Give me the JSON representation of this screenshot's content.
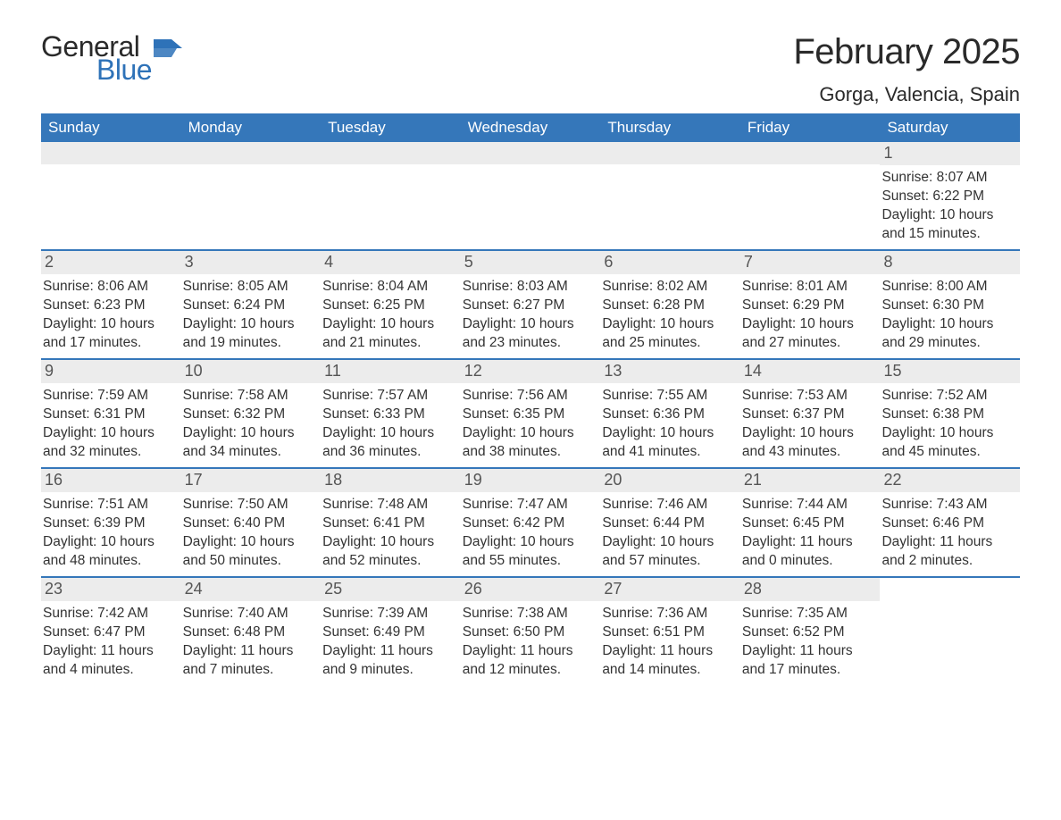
{
  "logo": {
    "word1": "General",
    "word2": "Blue",
    "flag_color": "#2e72b8"
  },
  "title": "February 2025",
  "location": "Gorga, Valencia, Spain",
  "colors": {
    "header_bg": "#3577ba",
    "header_text": "#ffffff",
    "daynum_bg": "#ececec",
    "daynum_text": "#555555",
    "body_text": "#333333",
    "rule": "#3577ba"
  },
  "typography": {
    "title_fontsize": 40,
    "location_fontsize": 22,
    "header_fontsize": 17,
    "daynum_fontsize": 18,
    "detail_fontsize": 15.5
  },
  "day_names": [
    "Sunday",
    "Monday",
    "Tuesday",
    "Wednesday",
    "Thursday",
    "Friday",
    "Saturday"
  ],
  "weeks": [
    [
      null,
      null,
      null,
      null,
      null,
      null,
      {
        "num": "1",
        "sunrise": "Sunrise: 8:07 AM",
        "sunset": "Sunset: 6:22 PM",
        "daylight": "Daylight: 10 hours and 15 minutes."
      }
    ],
    [
      {
        "num": "2",
        "sunrise": "Sunrise: 8:06 AM",
        "sunset": "Sunset: 6:23 PM",
        "daylight": "Daylight: 10 hours and 17 minutes."
      },
      {
        "num": "3",
        "sunrise": "Sunrise: 8:05 AM",
        "sunset": "Sunset: 6:24 PM",
        "daylight": "Daylight: 10 hours and 19 minutes."
      },
      {
        "num": "4",
        "sunrise": "Sunrise: 8:04 AM",
        "sunset": "Sunset: 6:25 PM",
        "daylight": "Daylight: 10 hours and 21 minutes."
      },
      {
        "num": "5",
        "sunrise": "Sunrise: 8:03 AM",
        "sunset": "Sunset: 6:27 PM",
        "daylight": "Daylight: 10 hours and 23 minutes."
      },
      {
        "num": "6",
        "sunrise": "Sunrise: 8:02 AM",
        "sunset": "Sunset: 6:28 PM",
        "daylight": "Daylight: 10 hours and 25 minutes."
      },
      {
        "num": "7",
        "sunrise": "Sunrise: 8:01 AM",
        "sunset": "Sunset: 6:29 PM",
        "daylight": "Daylight: 10 hours and 27 minutes."
      },
      {
        "num": "8",
        "sunrise": "Sunrise: 8:00 AM",
        "sunset": "Sunset: 6:30 PM",
        "daylight": "Daylight: 10 hours and 29 minutes."
      }
    ],
    [
      {
        "num": "9",
        "sunrise": "Sunrise: 7:59 AM",
        "sunset": "Sunset: 6:31 PM",
        "daylight": "Daylight: 10 hours and 32 minutes."
      },
      {
        "num": "10",
        "sunrise": "Sunrise: 7:58 AM",
        "sunset": "Sunset: 6:32 PM",
        "daylight": "Daylight: 10 hours and 34 minutes."
      },
      {
        "num": "11",
        "sunrise": "Sunrise: 7:57 AM",
        "sunset": "Sunset: 6:33 PM",
        "daylight": "Daylight: 10 hours and 36 minutes."
      },
      {
        "num": "12",
        "sunrise": "Sunrise: 7:56 AM",
        "sunset": "Sunset: 6:35 PM",
        "daylight": "Daylight: 10 hours and 38 minutes."
      },
      {
        "num": "13",
        "sunrise": "Sunrise: 7:55 AM",
        "sunset": "Sunset: 6:36 PM",
        "daylight": "Daylight: 10 hours and 41 minutes."
      },
      {
        "num": "14",
        "sunrise": "Sunrise: 7:53 AM",
        "sunset": "Sunset: 6:37 PM",
        "daylight": "Daylight: 10 hours and 43 minutes."
      },
      {
        "num": "15",
        "sunrise": "Sunrise: 7:52 AM",
        "sunset": "Sunset: 6:38 PM",
        "daylight": "Daylight: 10 hours and 45 minutes."
      }
    ],
    [
      {
        "num": "16",
        "sunrise": "Sunrise: 7:51 AM",
        "sunset": "Sunset: 6:39 PM",
        "daylight": "Daylight: 10 hours and 48 minutes."
      },
      {
        "num": "17",
        "sunrise": "Sunrise: 7:50 AM",
        "sunset": "Sunset: 6:40 PM",
        "daylight": "Daylight: 10 hours and 50 minutes."
      },
      {
        "num": "18",
        "sunrise": "Sunrise: 7:48 AM",
        "sunset": "Sunset: 6:41 PM",
        "daylight": "Daylight: 10 hours and 52 minutes."
      },
      {
        "num": "19",
        "sunrise": "Sunrise: 7:47 AM",
        "sunset": "Sunset: 6:42 PM",
        "daylight": "Daylight: 10 hours and 55 minutes."
      },
      {
        "num": "20",
        "sunrise": "Sunrise: 7:46 AM",
        "sunset": "Sunset: 6:44 PM",
        "daylight": "Daylight: 10 hours and 57 minutes."
      },
      {
        "num": "21",
        "sunrise": "Sunrise: 7:44 AM",
        "sunset": "Sunset: 6:45 PM",
        "daylight": "Daylight: 11 hours and 0 minutes."
      },
      {
        "num": "22",
        "sunrise": "Sunrise: 7:43 AM",
        "sunset": "Sunset: 6:46 PM",
        "daylight": "Daylight: 11 hours and 2 minutes."
      }
    ],
    [
      {
        "num": "23",
        "sunrise": "Sunrise: 7:42 AM",
        "sunset": "Sunset: 6:47 PM",
        "daylight": "Daylight: 11 hours and 4 minutes."
      },
      {
        "num": "24",
        "sunrise": "Sunrise: 7:40 AM",
        "sunset": "Sunset: 6:48 PM",
        "daylight": "Daylight: 11 hours and 7 minutes."
      },
      {
        "num": "25",
        "sunrise": "Sunrise: 7:39 AM",
        "sunset": "Sunset: 6:49 PM",
        "daylight": "Daylight: 11 hours and 9 minutes."
      },
      {
        "num": "26",
        "sunrise": "Sunrise: 7:38 AM",
        "sunset": "Sunset: 6:50 PM",
        "daylight": "Daylight: 11 hours and 12 minutes."
      },
      {
        "num": "27",
        "sunrise": "Sunrise: 7:36 AM",
        "sunset": "Sunset: 6:51 PM",
        "daylight": "Daylight: 11 hours and 14 minutes."
      },
      {
        "num": "28",
        "sunrise": "Sunrise: 7:35 AM",
        "sunset": "Sunset: 6:52 PM",
        "daylight": "Daylight: 11 hours and 17 minutes."
      },
      null
    ]
  ]
}
